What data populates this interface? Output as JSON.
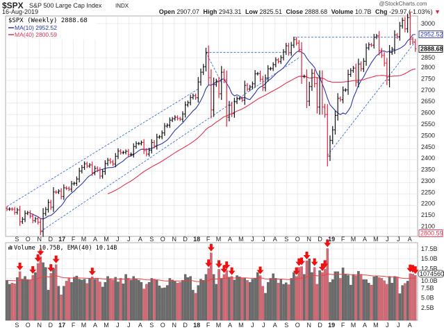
{
  "header": {
    "symbol": "$SPX",
    "name": "S&P 500 Large Cap Index",
    "exchange": "INDX",
    "date": "16-Aug-2019",
    "watermark": "@StockCharts.com",
    "open_label": "Open",
    "open": "2907.07",
    "high_label": "High",
    "high": "2943.31",
    "low_label": "Low",
    "low": "2825.51",
    "close_label": "Close",
    "close": "2888.68",
    "volume_label": "Volume",
    "volume": "10.7B",
    "chg_label": "Chg",
    "chg": "-29.97 (-1.03%)",
    "chg_arrow": "▼"
  },
  "legend": {
    "price": "$SPX (Weekly) 2888.68",
    "ma10": "MA(10) 2952.52",
    "ma40": "MA(40) 2800.59",
    "volume": "Volume 10.75B, EMA(40) 10.14B"
  },
  "colors": {
    "up": "#111111",
    "down": "#e0203a",
    "ma10": "#2a35a8",
    "ma40": "#e03050",
    "trend": "#3a6fd8",
    "vol_up": "#6b6b6b",
    "vol_down": "#d26a75",
    "arrow": "#ee1111",
    "grid": "#e4e4e4"
  },
  "chart_data": [
    {
      "type": "ohlc",
      "frequency": "weekly",
      "last_date": "2019-08-16",
      "ylim": [
        2060,
        3060
      ],
      "y_ticks": [
        "3000",
        "2850",
        "2800",
        "2750",
        "2700",
        "2650",
        "2600",
        "2550",
        "2500",
        "2450",
        "2400",
        "2350",
        "2300",
        "2250",
        "2200",
        "2150",
        "2100"
      ],
      "y_tick_values": [
        3000,
        2850,
        2800,
        2750,
        2700,
        2650,
        2600,
        2550,
        2500,
        2450,
        2400,
        2350,
        2300,
        2250,
        2200,
        2150,
        2100
      ],
      "value_tags": {
        "ma10": "2952.52",
        "close": "2888.68",
        "ma40": "2800.59"
      },
      "x_ticks": [
        "S",
        "O",
        "N",
        "D",
        "17",
        "F",
        "M",
        "A",
        "M",
        "J",
        "J",
        "A",
        "S",
        "O",
        "N",
        "D",
        "18",
        "F",
        "M",
        "A",
        "M",
        "J",
        "J",
        "A",
        "S",
        "O",
        "N",
        "D",
        "19",
        "F",
        "M",
        "A",
        "M",
        "J",
        "J",
        "A"
      ],
      "x_tick_start_month": "2016-09",
      "overlays": [
        "MA(10)",
        "MA(40)"
      ],
      "close": [
        2183,
        2184,
        2183,
        2169,
        2180,
        2128,
        2139,
        2165,
        2168,
        2153,
        2133,
        2141,
        2126,
        2085,
        2164,
        2182,
        2213,
        2192,
        2259,
        2258,
        2263,
        2239,
        2277,
        2275,
        2271,
        2295,
        2297,
        2316,
        2351,
        2367,
        2383,
        2373,
        2378,
        2344,
        2363,
        2355,
        2329,
        2349,
        2384,
        2399,
        2391,
        2382,
        2416,
        2439,
        2432,
        2433,
        2438,
        2423,
        2425,
        2459,
        2472,
        2472,
        2477,
        2441,
        2426,
        2443,
        2477,
        2461,
        2500,
        2502,
        2519,
        2549,
        2553,
        2575,
        2581,
        2588,
        2582,
        2579,
        2602,
        2642,
        2652,
        2675,
        2683,
        2674,
        2743,
        2786,
        2810,
        2873,
        2762,
        2620,
        2732,
        2747,
        2691,
        2786,
        2752,
        2588,
        2641,
        2604,
        2656,
        2670,
        2670,
        2663,
        2728,
        2712,
        2721,
        2735,
        2779,
        2780,
        2755,
        2718,
        2760,
        2801,
        2802,
        2819,
        2840,
        2833,
        2850,
        2875,
        2902,
        2872,
        2905,
        2930,
        2914,
        2886,
        2767,
        2768,
        2658,
        2723,
        2781,
        2736,
        2633,
        2760,
        2633,
        2600,
        2417,
        2486,
        2532,
        2596,
        2671,
        2665,
        2707,
        2708,
        2776,
        2793,
        2804,
        2743,
        2822,
        2801,
        2834,
        2893,
        2907,
        2905,
        2940,
        2946,
        2881,
        2860,
        2826,
        2752,
        2873,
        2887,
        2950,
        2942,
        2990,
        3014,
        2977,
        3026,
        2932,
        2919,
        2889
      ],
      "trendlines": [
        {
          "from": [
            "2016-08-05",
            2195
          ],
          "to": [
            "2018-01-05",
            2712
          ]
        },
        {
          "from": [
            "2016-11-04",
            2085
          ],
          "to": [
            "2018-10-05",
            2850
          ]
        },
        {
          "from": [
            "2018-01-26",
            2873
          ],
          "to": [
            "2018-08-24",
            2873
          ]
        },
        {
          "from": [
            "2018-01-26",
            2873
          ],
          "to": [
            "2018-03-09",
            2740
          ]
        },
        {
          "from": [
            "2018-09-21",
            2940
          ],
          "to": [
            "2019-07-05",
            2940
          ]
        },
        {
          "from": [
            "2018-12-21",
            2420
          ],
          "to": [
            "2019-08-16",
            2920
          ]
        }
      ]
    },
    {
      "type": "bar",
      "name": "Volume",
      "unit": "B",
      "ylim": [
        0,
        18
      ],
      "y_ticks": [
        "17.5B",
        "15.0B",
        "12.5B",
        "10.0B",
        "7.5B",
        "5.0B",
        "2.5B"
      ],
      "y_tick_values": [
        17.5,
        15,
        12.5,
        10,
        7.5,
        5,
        2.5
      ],
      "value_tag": "10745603",
      "overlay": "EMA(40)",
      "values": [
        9.5,
        8.5,
        8.8,
        8.6,
        10.2,
        11.7,
        9.8,
        10.5,
        9.7,
        9.5,
        10.8,
        11.5,
        13.8,
        15.5,
        14.0,
        12.8,
        7.0,
        11.3,
        12.5,
        13.5,
        8.0,
        5.8,
        8.0,
        9.3,
        10.0,
        9.0,
        10.3,
        10.6,
        9.8,
        9.6,
        9.8,
        8.7,
        10.0,
        10.4,
        9.8,
        10.0,
        9.1,
        7.8,
        9.0,
        10.5,
        9.9,
        9.6,
        10.3,
        9.1,
        10.0,
        8.6,
        11.0,
        10.0,
        9.6,
        10.5,
        9.9,
        9.5,
        9.0,
        7.3,
        8.5,
        9.0,
        10.0,
        9.8,
        9.6,
        8.1,
        7.5,
        7.6,
        8.2,
        10.0,
        9.6,
        9.2,
        8.8,
        9.0,
        9.5,
        11.0,
        10.2,
        10.5,
        7.0,
        6.2,
        8.2,
        9.8,
        9.5,
        11.0,
        12.5,
        16.5,
        11.0,
        8.5,
        12.3,
        10.0,
        11.0,
        12.0,
        10.3,
        10.5,
        9.6,
        10.7,
        10.4,
        10.0,
        10.0,
        9.5,
        9.0,
        9.8,
        10.0,
        11.5,
        10.7,
        8.0,
        6.2,
        9.0,
        10.0,
        11.2,
        10.0,
        8.8,
        9.8,
        8.5,
        8.9,
        8.4,
        10.0,
        11.5,
        10.5,
        12.8,
        13.0,
        11.0,
        14.5,
        15.0,
        11.5,
        12.8,
        8.5,
        12.0,
        11.5,
        12.3,
        17.6,
        9.0,
        9.7,
        11.7,
        11.7,
        10.0,
        12.7,
        11.0,
        10.8,
        8.3,
        11.0,
        10.7,
        11.8,
        11.0,
        9.7,
        9.7,
        8.8,
        8.3,
        10.4,
        10.5,
        10.2,
        10.0,
        9.4,
        8.5,
        10.5,
        8.8,
        10.5,
        10.3,
        6.1,
        8.2,
        8.7,
        9.3,
        11.2,
        11.1,
        10.75
      ]
    }
  ]
}
